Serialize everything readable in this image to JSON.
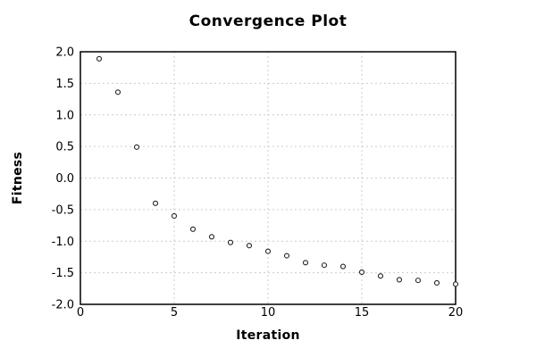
{
  "chart_data": {
    "type": "scatter",
    "title": "Convergence Plot",
    "xlabel": "Iteration",
    "ylabel": "Fitness",
    "x": [
      1,
      2,
      3,
      4,
      5,
      6,
      7,
      8,
      9,
      10,
      11,
      12,
      13,
      14,
      15,
      16,
      17,
      18,
      19,
      20
    ],
    "y": [
      1.89,
      1.36,
      0.49,
      -0.4,
      -0.6,
      -0.81,
      -0.93,
      -1.02,
      -1.07,
      -1.16,
      -1.23,
      -1.34,
      -1.38,
      -1.4,
      -1.49,
      -1.55,
      -1.61,
      -1.62,
      -1.66,
      -1.68
    ],
    "xlim": [
      0,
      20
    ],
    "ylim": [
      -2.0,
      2.0
    ],
    "xticks": [
      0,
      5,
      10,
      15,
      20
    ],
    "yticks": [
      -2.0,
      -1.5,
      -1.0,
      -0.5,
      0.0,
      0.5,
      1.0,
      1.5,
      2.0
    ],
    "grid": "dashed",
    "legend_position": "none",
    "marker": {
      "shape": "open-circle",
      "stroke_color": "#222222",
      "fill_color": "#ffffff"
    },
    "colors": {
      "background": "#ffffff",
      "frame": "#000000",
      "grid": "#cccccc",
      "text": "#000000"
    }
  }
}
